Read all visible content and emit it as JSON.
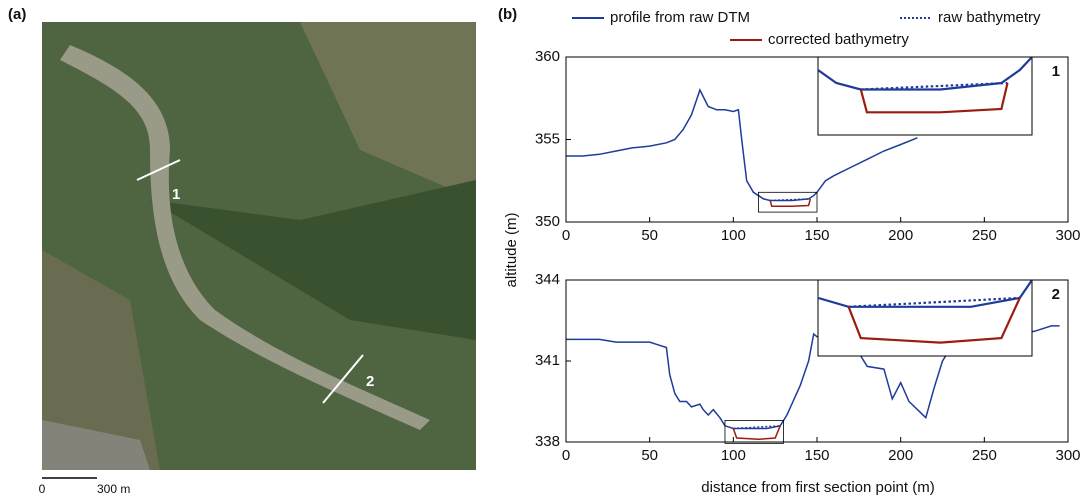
{
  "photo": {
    "label": "(a)",
    "section_labels": [
      "1",
      "2"
    ],
    "scale_labels": [
      "0",
      "300 m"
    ]
  },
  "panel_label": "(b)",
  "xlabel": "distance from first section point (m)",
  "ylabel": "altitude (m)",
  "chart_data": [
    {
      "type": "line",
      "panel_label": "1",
      "xlim": [
        0,
        300
      ],
      "xticks": [
        0,
        50,
        100,
        150,
        200,
        250,
        300
      ],
      "ylim": [
        350,
        360
      ],
      "yticks": [
        350,
        355,
        360
      ],
      "inset": {
        "xlim": [
          115,
          150
        ],
        "ylim": [
          350.6,
          351.8
        ]
      },
      "series": [
        {
          "name": "profile from raw DTM",
          "color": "#1f3c9a",
          "dash": "solid",
          "x": [
            0,
            10,
            20,
            30,
            40,
            50,
            60,
            65,
            70,
            75,
            80,
            85,
            90,
            95,
            100,
            103,
            105,
            108,
            112,
            118,
            122,
            125,
            135,
            145,
            148,
            150,
            155,
            160,
            170,
            180,
            190,
            200,
            210
          ],
          "values": [
            354,
            354,
            354.1,
            354.3,
            354.5,
            354.6,
            354.8,
            355,
            355.6,
            356.5,
            358,
            357,
            356.8,
            356.8,
            356.7,
            356.8,
            355,
            352.5,
            351.8,
            351.4,
            351.3,
            351.3,
            351.3,
            351.4,
            351.6,
            351.8,
            352.5,
            352.8,
            353.3,
            353.8,
            354.3,
            354.7,
            355.1
          ]
        },
        {
          "name": "raw bathymetry",
          "color": "#1f3c9a",
          "dash": "dotted",
          "x": [
            122,
            146
          ],
          "values": [
            351.3,
            351.4
          ]
        },
        {
          "name": "corrected bathymetry",
          "color": "#9b1c10",
          "dash": "solid",
          "x": [
            122,
            123,
            135,
            145,
            146
          ],
          "values": [
            351.3,
            350.95,
            350.95,
            351.0,
            351.4
          ]
        }
      ]
    },
    {
      "type": "line",
      "panel_label": "2",
      "xlim": [
        0,
        300
      ],
      "xticks": [
        0,
        50,
        100,
        150,
        200,
        250,
        300
      ],
      "ylim": [
        338,
        344
      ],
      "yticks": [
        338,
        341,
        344
      ],
      "inset": {
        "xlim": [
          95,
          130
        ],
        "ylim": [
          337.95,
          338.8
        ]
      },
      "series": [
        {
          "color": "#1f3c9a",
          "dash": "solid",
          "x": [
            0,
            10,
            20,
            30,
            40,
            50,
            55,
            60,
            62,
            65,
            68,
            72,
            75,
            80,
            82,
            85,
            88,
            92,
            95,
            100,
            110,
            120,
            128,
            132,
            140,
            145,
            148,
            150,
            155,
            165,
            170,
            180,
            190,
            195,
            200,
            205,
            210,
            215,
            220,
            225,
            230,
            240,
            250,
            260,
            270,
            280,
            290,
            295
          ],
          "values": [
            341.8,
            341.8,
            341.8,
            341.7,
            341.7,
            341.7,
            341.6,
            341.5,
            340.5,
            339.8,
            339.5,
            339.5,
            339.3,
            339.4,
            339.2,
            339.0,
            339.2,
            338.9,
            338.6,
            338.5,
            338.5,
            338.5,
            338.6,
            339.0,
            340.1,
            341.0,
            342.0,
            341.9,
            341.9,
            341.6,
            341.8,
            340.8,
            340.7,
            339.6,
            340.2,
            339.5,
            339.2,
            338.9,
            340.0,
            341.0,
            341.5,
            341.7,
            341.9,
            342.0,
            342.0,
            342.1,
            342.3,
            342.3
          ]
        },
        {
          "color": "#1f3c9a",
          "dash": "dotted",
          "x": [
            100,
            128
          ],
          "values": [
            338.5,
            338.6
          ]
        },
        {
          "color": "#9b1c10",
          "dash": "solid",
          "x": [
            100,
            102,
            115,
            125,
            128
          ],
          "values": [
            338.5,
            338.15,
            338.1,
            338.15,
            338.6
          ]
        }
      ]
    }
  ]
}
